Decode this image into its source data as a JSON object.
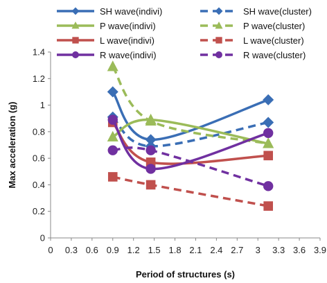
{
  "chart_data": {
    "type": "line",
    "title": "",
    "xlabel": "Period of structures (s)",
    "ylabel": "Max acceleration (g)",
    "xlim": [
      0,
      3.9
    ],
    "ylim": [
      0,
      1.4
    ],
    "xticks": [
      0,
      0.3,
      0.6,
      0.9,
      1.2,
      1.5,
      1.8,
      2.1,
      2.4,
      2.7,
      3,
      3.3,
      3.6,
      3.9
    ],
    "xtick_labels": [
      "0",
      "0.3",
      "0.6",
      "0.9",
      "1.2",
      "1.5",
      "1.8",
      "2.1",
      "2.4",
      "2.7",
      "3",
      "3.3",
      "3.6",
      "3.9"
    ],
    "yticks": [
      0,
      0.2,
      0.4,
      0.6,
      0.8,
      1,
      1.2,
      1.4
    ],
    "ytick_labels": [
      "0",
      "0.2",
      "0.4",
      "0.6",
      "0.8",
      "1",
      "1.2",
      "1.4"
    ],
    "grid": false,
    "legend_position": "top",
    "series": [
      {
        "name": "SH wave(indivi)",
        "color": "#3a6eb5",
        "dash": false,
        "marker": "diamond",
        "x": [
          0.9,
          1.45,
          3.15
        ],
        "y": [
          1.1,
          0.74,
          1.04
        ]
      },
      {
        "name": "SH wave(cluster)",
        "color": "#3a6eb5",
        "dash": true,
        "marker": "diamond",
        "x": [
          0.9,
          1.45,
          3.15
        ],
        "y": [
          0.91,
          0.69,
          0.87
        ]
      },
      {
        "name": "P wave(indivi)",
        "color": "#9bbb59",
        "dash": false,
        "marker": "triangle",
        "x": [
          0.9,
          1.45,
          3.15
        ],
        "y": [
          0.76,
          0.89,
          0.71
        ]
      },
      {
        "name": "P wave(cluster)",
        "color": "#9bbb59",
        "dash": true,
        "marker": "triangle",
        "x": [
          0.9,
          1.45,
          3.15
        ],
        "y": [
          1.29,
          0.88,
          0.71
        ]
      },
      {
        "name": "L wave(indivi)",
        "color": "#c0504d",
        "dash": false,
        "marker": "square",
        "x": [
          0.9,
          1.45,
          3.15
        ],
        "y": [
          0.87,
          0.57,
          0.62
        ]
      },
      {
        "name": "L wave(cluster)",
        "color": "#c0504d",
        "dash": true,
        "marker": "square",
        "x": [
          0.9,
          1.45,
          3.15
        ],
        "y": [
          0.46,
          0.4,
          0.24
        ]
      },
      {
        "name": "R wave(indivi)",
        "color": "#7030a0",
        "dash": false,
        "marker": "circle",
        "x": [
          0.9,
          1.45,
          3.15
        ],
        "y": [
          0.89,
          0.52,
          0.79
        ]
      },
      {
        "name": "R wave(cluster)",
        "color": "#7030a0",
        "dash": true,
        "marker": "circle",
        "x": [
          0.9,
          1.45,
          3.15
        ],
        "y": [
          0.66,
          0.66,
          0.39
        ]
      }
    ]
  }
}
